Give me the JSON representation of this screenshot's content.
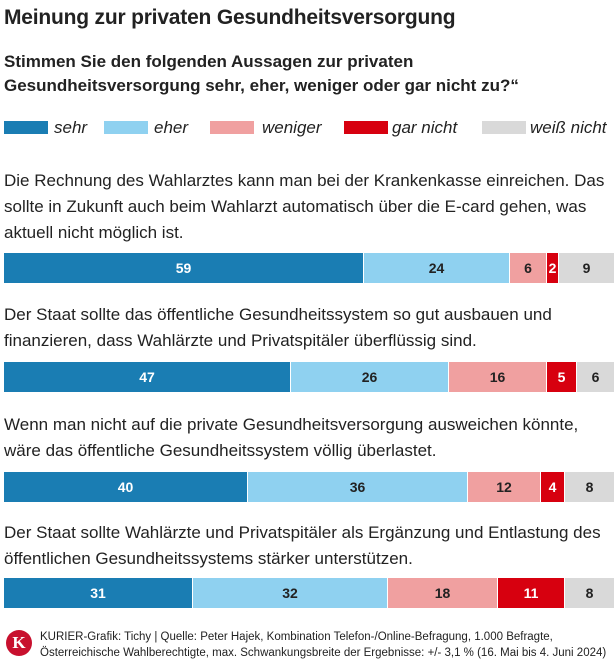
{
  "chart_data": {
    "type": "bar",
    "orientation": "horizontal-stacked-100",
    "title": "Meinung zur privaten Gesundheitsversorgung",
    "subtitle": "Stimmen Sie den folgenden Aussagen zur privaten Gesundheitsversorgung sehr, eher, weniger oder gar nicht zu?“",
    "legend_position": "top",
    "series": [
      {
        "name": "sehr",
        "color": "#1a7db3",
        "text_color": "#ffffff"
      },
      {
        "name": "eher",
        "color": "#8fd1f0",
        "text_color": "#222222"
      },
      {
        "name": "weniger",
        "color": "#f0a0a0",
        "text_color": "#222222"
      },
      {
        "name": "gar nicht",
        "color": "#d7000f",
        "text_color": "#ffffff"
      },
      {
        "name": "weiß nicht",
        "color": "#d9d9d9",
        "text_color": "#222222"
      }
    ],
    "categories": [
      "Die Rechnung des Wahlarztes kann man bei der Krankenkasse einreichen. Das sollte in Zukunft auch beim Wahlarzt automatisch über die E-card gehen, was aktuell nicht möglich ist.",
      "Der Staat sollte das öffentliche Gesundheitssystem so gut ausbauen und finanzieren, dass Wahlärzte und Privatspitäler überflüssig sind.",
      "Wenn man nicht auf die private Gesundheitsversorgung ausweichen könnte, wäre das öffentliche Gesundheitssystem völlig überlastet.",
      "Der Staat sollte Wahlärzte und Privatspitäler als Ergänzung und Entlastung des öffentlichen Gesundheitssystems stärker unterstützen."
    ],
    "values": [
      [
        59,
        24,
        6,
        2,
        9
      ],
      [
        47,
        26,
        16,
        5,
        6
      ],
      [
        40,
        36,
        12,
        4,
        8
      ],
      [
        31,
        32,
        18,
        11,
        8
      ]
    ]
  },
  "footer": {
    "logo_letter": "K",
    "source": "KURIER-Grafik: Tichy | Quelle: Peter Hajek, Kombination Telefon-/Online-Befragung, 1.000 Befragte, Österreichische Wahlberechtigte, max. Schwankungsbreite der Ergebnisse: +/- 3,1 % (16. Mai bis 4. Juni 2024)"
  }
}
